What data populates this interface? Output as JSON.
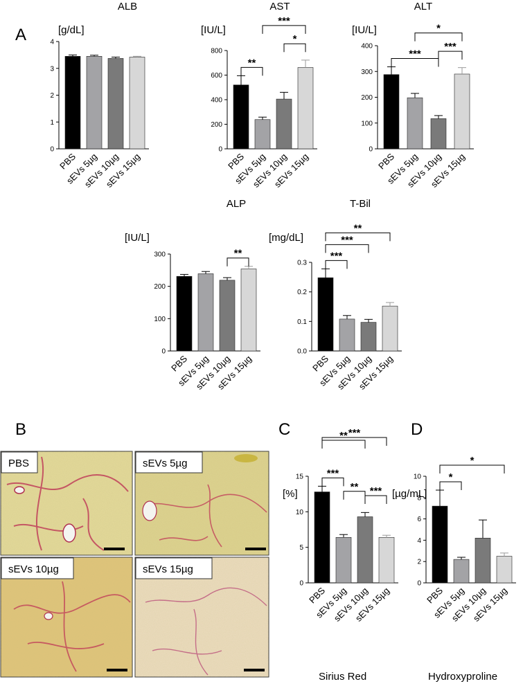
{
  "panel_labels": {
    "A": "A",
    "B": "B",
    "C": "C",
    "D": "D"
  },
  "colors": {
    "PBS": "#000000",
    "sEVs 5µg": "#a3a3a6",
    "sEVs 10µg": "#7a7a7a",
    "sEVs 15µg": "#d7d7d7"
  },
  "micrographs": [
    {
      "label": "PBS",
      "tone": "#e3d99a"
    },
    {
      "label": "sEVs 5µg",
      "tone": "#ddd28f"
    },
    {
      "label": "sEVs 10µg",
      "tone": "#e0c47a"
    },
    {
      "label": "sEVs 15µg",
      "tone": "#ecdcc0"
    }
  ],
  "chart_data": [
    {
      "type": "bar",
      "title": "ALB",
      "ylabel": "[g/dL]",
      "categories": [
        "PBS",
        "sEVs 5µg",
        "sEVs 10µg",
        "sEVs 15µg"
      ],
      "values": [
        3.45,
        3.45,
        3.37,
        3.42
      ],
      "errors": [
        0.05,
        0.04,
        0.05,
        0.03
      ],
      "ylim": [
        0,
        4
      ],
      "yticks": [
        "0",
        "1",
        "2",
        "3",
        "4"
      ],
      "grid": false,
      "significance": []
    },
    {
      "type": "bar",
      "title": "AST",
      "ylabel": "[IU/L]",
      "categories": [
        "PBS",
        "sEVs 5µg",
        "sEVs 10µg",
        "sEVs 15µg"
      ],
      "values": [
        520,
        238,
        405,
        662
      ],
      "errors": [
        75,
        20,
        55,
        60
      ],
      "ylim": [
        0,
        800
      ],
      "yticks": [
        "0",
        "200",
        "400",
        "600",
        "800"
      ],
      "grid": false,
      "significance": [
        {
          "from": 0,
          "to": 1,
          "label": "**"
        },
        {
          "from": 2,
          "to": 3,
          "label": "*"
        },
        {
          "from": 1,
          "to": 3,
          "label": "***"
        }
      ]
    },
    {
      "type": "bar",
      "title": "ALT",
      "ylabel": "[IU/L]",
      "categories": [
        "PBS",
        "sEVs 5µg",
        "sEVs 10µg",
        "sEVs 15µg"
      ],
      "values": [
        288,
        198,
        117,
        290
      ],
      "errors": [
        30,
        17,
        12,
        25
      ],
      "ylim": [
        0,
        400
      ],
      "yticks": [
        "0",
        "100",
        "200",
        "300",
        "400"
      ],
      "grid": false,
      "significance": [
        {
          "from": 0,
          "to": 2,
          "label": "***"
        },
        {
          "from": 2,
          "to": 3,
          "label": "***"
        },
        {
          "from": 1,
          "to": 3,
          "label": "*"
        }
      ]
    },
    {
      "type": "bar",
      "title": "ALP",
      "ylabel": "[IU/L]",
      "categories": [
        "PBS",
        "sEVs 5µg",
        "sEVs 10µg",
        "sEVs 15µg"
      ],
      "values": [
        231,
        239,
        219,
        254
      ],
      "errors": [
        6,
        7,
        8,
        8
      ],
      "ylim": [
        0,
        300
      ],
      "yticks": [
        "0",
        "100",
        "200",
        "300"
      ],
      "grid": false,
      "significance": [
        {
          "from": 2,
          "to": 3,
          "label": "**"
        }
      ]
    },
    {
      "type": "bar",
      "title": "T-Bil",
      "ylabel": "[mg/dL]",
      "categories": [
        "PBS",
        "sEVs 5µg",
        "sEVs 10µg",
        "sEVs 15µg"
      ],
      "values": [
        0.248,
        0.108,
        0.097,
        0.152
      ],
      "errors": [
        0.03,
        0.012,
        0.01,
        0.012
      ],
      "ylim": [
        0,
        0.3
      ],
      "yticks": [
        "0.0",
        "0.1",
        "0.2",
        "0.3"
      ],
      "grid": false,
      "significance": [
        {
          "from": 0,
          "to": 1,
          "label": "***"
        },
        {
          "from": 0,
          "to": 2,
          "label": "***"
        },
        {
          "from": 0,
          "to": 3,
          "label": "**"
        }
      ]
    },
    {
      "type": "bar",
      "title": "",
      "xlabel": "Sirius Red",
      "ylabel": "[%]",
      "categories": [
        "PBS",
        "sEVs 5µg",
        "sEVs 10µg",
        "sEVs 15µg"
      ],
      "values": [
        12.8,
        6.4,
        9.3,
        6.4
      ],
      "errors": [
        0.8,
        0.4,
        0.6,
        0.3
      ],
      "ylim": [
        0,
        15
      ],
      "yticks": [
        "0",
        "5",
        "10",
        "15"
      ],
      "grid": false,
      "significance": [
        {
          "from": 0,
          "to": 1,
          "label": "***"
        },
        {
          "from": 2,
          "to": 3,
          "label": "***"
        },
        {
          "from": 1,
          "to": 2,
          "label": "**"
        },
        {
          "from": 0,
          "to": 2,
          "label": "**"
        },
        {
          "from": 0,
          "to": 3,
          "label": "***"
        }
      ]
    },
    {
      "type": "bar",
      "title": "",
      "xlabel": "Hydroxyproline",
      "ylabel": "[µg/mL]",
      "categories": [
        "PBS",
        "sEVs 5µg",
        "sEVs 10µg",
        "sEVs 15µg"
      ],
      "values": [
        7.2,
        2.2,
        4.2,
        2.5
      ],
      "errors": [
        1.5,
        0.2,
        1.7,
        0.3
      ],
      "ylim": [
        0,
        10
      ],
      "yticks": [
        "0",
        "2",
        "4",
        "6",
        "8",
        "10"
      ],
      "grid": false,
      "significance": [
        {
          "from": 0,
          "to": 1,
          "label": "*"
        },
        {
          "from": 0,
          "to": 3,
          "label": "*"
        }
      ]
    }
  ]
}
